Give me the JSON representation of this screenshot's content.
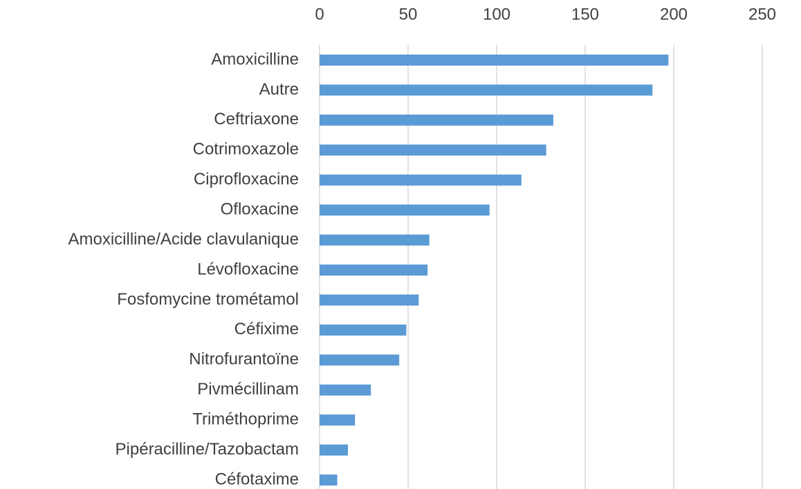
{
  "chart_data": {
    "type": "barh",
    "categories": [
      "Amoxicilline",
      "Autre",
      "Ceftriaxone",
      "Cotrimoxazole",
      "Ciprofloxacine",
      "Ofloxacine",
      "Amoxicilline/Acide clavulanique",
      "Lévofloxacine",
      "Fosfomycine trométamol",
      "Céfixime",
      "Nitrofurantoïne",
      "Pivmécillinam",
      "Triméthoprime",
      "Pipéracilline/Tazobactam",
      "Céfotaxime"
    ],
    "values": [
      197,
      188,
      132,
      128,
      114,
      96,
      62,
      61,
      56,
      49,
      45,
      29,
      20,
      16,
      10
    ],
    "color": "#5b9bd5",
    "xlim": [
      0,
      250
    ],
    "xticks": [
      0,
      50,
      100,
      150,
      200,
      250
    ],
    "xaxis_position": "top",
    "grid": true
  }
}
